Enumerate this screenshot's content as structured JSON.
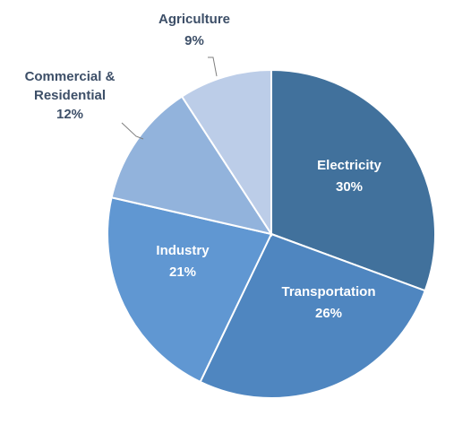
{
  "chart_data": {
    "type": "pie",
    "title": "",
    "slices": [
      {
        "label": "Electricity",
        "value": 30,
        "value_label": "30%",
        "color": "#41719c",
        "text_color": "#ffffff",
        "label_position": "inside"
      },
      {
        "label": "Transportation",
        "value": 26,
        "value_label": "26%",
        "color": "#4f86c0",
        "text_color": "#ffffff",
        "label_position": "inside"
      },
      {
        "label": "Industry",
        "value": 21,
        "value_label": "21%",
        "color": "#6097d2",
        "text_color": "#ffffff",
        "label_position": "inside"
      },
      {
        "label": "Commercial & Residential",
        "label_lines": [
          "Commercial &",
          "Residential"
        ],
        "value": 12,
        "value_label": "12%",
        "color": "#92b3dc",
        "text_color": "#3d4f68",
        "label_position": "outside"
      },
      {
        "label": "Agriculture",
        "value": 9,
        "value_label": "9%",
        "color": "#bccde8",
        "text_color": "#3d4f68",
        "label_position": "outside"
      }
    ],
    "start_angle": "12 o'clock",
    "direction": "clockwise",
    "legend": "none"
  }
}
